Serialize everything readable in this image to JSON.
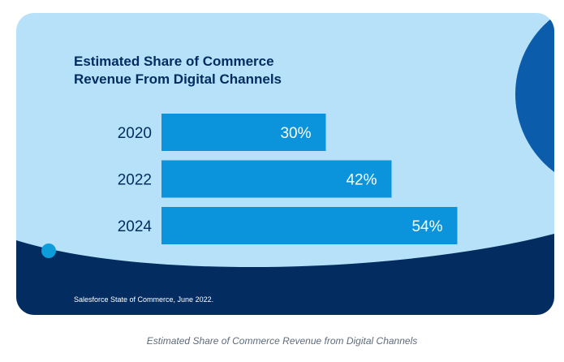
{
  "colors": {
    "card_background": "#b7e1f8",
    "bar": "#0b94db",
    "dark_navy": "#032d60",
    "circle_blue": "#0b5cab",
    "dot": "#0d9dda",
    "title": "#032d60",
    "caption": "#5f6b7a"
  },
  "chart_data": {
    "type": "bar",
    "orientation": "horizontal",
    "title_lines": [
      "Estimated Share of Commerce",
      "Revenue From Digital Channels"
    ],
    "categories": [
      "2020",
      "2022",
      "2024"
    ],
    "values": [
      30,
      42,
      54
    ],
    "value_labels": [
      "30%",
      "42%",
      "54%"
    ],
    "unit": "%",
    "xlim": [
      0,
      100
    ],
    "grid": false,
    "legend": "none"
  },
  "source": "Salesforce State of Commerce, June 2022.",
  "caption": "Estimated Share of Commerce Revenue from Digital Channels"
}
